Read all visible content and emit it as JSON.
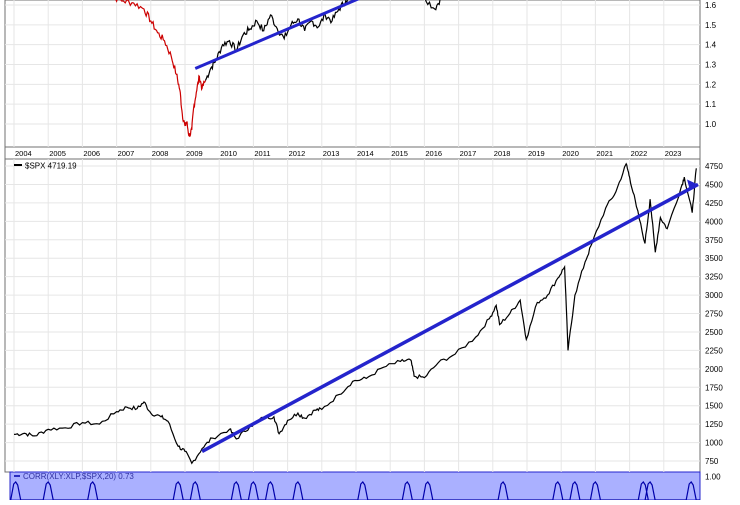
{
  "chart_data": [
    {
      "type": "line",
      "panel": "ratio",
      "title": "",
      "y_ticks": [
        "1.6",
        "1.5",
        "1.4",
        "1.3",
        "1.2",
        "1.1",
        "1.0"
      ],
      "ylim": [
        0.92,
        1.66
      ],
      "grid": true,
      "series": [
        {
          "color": "#cc0000",
          "points": [
            [
              2006.5,
              1.67
            ],
            [
              2006.9,
              1.64
            ],
            [
              2007.2,
              1.62
            ],
            [
              2007.5,
              1.61
            ],
            [
              2007.8,
              1.58
            ],
            [
              2008.0,
              1.52
            ],
            [
              2008.2,
              1.46
            ],
            [
              2008.4,
              1.42
            ],
            [
              2008.6,
              1.34
            ],
            [
              2008.75,
              1.25
            ],
            [
              2008.85,
              1.17
            ],
            [
              2008.92,
              1.05
            ],
            [
              2009.0,
              0.99
            ],
            [
              2009.05,
              1.01
            ],
            [
              2009.12,
              0.94
            ],
            [
              2009.2,
              0.97
            ],
            [
              2009.25,
              1.08
            ],
            [
              2009.33,
              1.16
            ],
            [
              2009.42,
              1.24
            ],
            [
              2009.5,
              1.18
            ],
            [
              2009.6,
              1.22
            ]
          ]
        },
        {
          "color": "#000000",
          "points": [
            [
              2009.6,
              1.22
            ],
            [
              2009.75,
              1.28
            ],
            [
              2009.9,
              1.32
            ],
            [
              2010.1,
              1.4
            ],
            [
              2010.3,
              1.42
            ],
            [
              2010.5,
              1.37
            ],
            [
              2010.7,
              1.45
            ],
            [
              2010.9,
              1.48
            ],
            [
              2011.1,
              1.52
            ],
            [
              2011.3,
              1.47
            ],
            [
              2011.5,
              1.55
            ],
            [
              2011.7,
              1.48
            ],
            [
              2011.9,
              1.43
            ],
            [
              2012.1,
              1.5
            ],
            [
              2012.3,
              1.53
            ],
            [
              2012.5,
              1.47
            ],
            [
              2012.7,
              1.52
            ],
            [
              2012.9,
              1.49
            ],
            [
              2013.1,
              1.55
            ],
            [
              2013.3,
              1.52
            ],
            [
              2013.5,
              1.58
            ],
            [
              2013.7,
              1.62
            ],
            [
              2013.9,
              1.66
            ],
            [
              2014.5,
              1.69
            ],
            [
              2015.0,
              1.66
            ],
            [
              2015.5,
              1.68
            ],
            [
              2016.0,
              1.64
            ],
            [
              2016.3,
              1.58
            ],
            [
              2016.5,
              1.64
            ],
            [
              2016.8,
              1.67
            ]
          ]
        }
      ],
      "trendline": {
        "color": "#2424cc",
        "from": [
          2009.3,
          1.28
        ],
        "to": [
          2014.6,
          1.67
        ]
      }
    },
    {
      "type": "line",
      "panel": "price",
      "legend_label": "$SPX 4719.19",
      "x_ticks": [
        "2004",
        "2005",
        "2006",
        "2007",
        "2008",
        "2009",
        "2010",
        "2011",
        "2012",
        "2013",
        "2014",
        "2015",
        "2016",
        "2017",
        "2018",
        "2019",
        "2020",
        "2021",
        "2022",
        "2023"
      ],
      "xlim": [
        2004.0,
        2024.0
      ],
      "y_ticks": [
        "4750",
        "4500",
        "4250",
        "4000",
        "3750",
        "3500",
        "3250",
        "3000",
        "2750",
        "2500",
        "2250",
        "2000",
        "1750",
        "1500",
        "1250",
        "1000",
        "750"
      ],
      "ylim": [
        650,
        4800
      ],
      "grid": true,
      "series": [
        {
          "name": "$SPX",
          "color": "#000000",
          "points": [
            [
              2004.0,
              1110
            ],
            [
              2004.3,
              1125
            ],
            [
              2004.6,
              1090
            ],
            [
              2005.0,
              1180
            ],
            [
              2005.5,
              1200
            ],
            [
              2006.0,
              1270
            ],
            [
              2006.5,
              1250
            ],
            [
              2007.0,
              1420
            ],
            [
              2007.3,
              1480
            ],
            [
              2007.6,
              1460
            ],
            [
              2007.8,
              1550
            ],
            [
              2008.0,
              1400
            ],
            [
              2008.3,
              1350
            ],
            [
              2008.5,
              1290
            ],
            [
              2008.8,
              950
            ],
            [
              2009.0,
              880
            ],
            [
              2009.2,
              720
            ],
            [
              2009.5,
              920
            ],
            [
              2009.8,
              1060
            ],
            [
              2010.3,
              1180
            ],
            [
              2010.5,
              1050
            ],
            [
              2010.9,
              1220
            ],
            [
              2011.3,
              1340
            ],
            [
              2011.6,
              1350
            ],
            [
              2011.75,
              1120
            ],
            [
              2012.0,
              1300
            ],
            [
              2012.3,
              1400
            ],
            [
              2012.5,
              1330
            ],
            [
              2012.8,
              1440
            ],
            [
              2013.0,
              1450
            ],
            [
              2013.5,
              1650
            ],
            [
              2013.9,
              1830
            ],
            [
              2014.3,
              1870
            ],
            [
              2014.8,
              2020
            ],
            [
              2015.3,
              2100
            ],
            [
              2015.6,
              2120
            ],
            [
              2015.7,
              1900
            ],
            [
              2016.0,
              1880
            ],
            [
              2016.4,
              2080
            ],
            [
              2016.9,
              2200
            ],
            [
              2017.5,
              2430
            ],
            [
              2017.9,
              2680
            ],
            [
              2018.1,
              2860
            ],
            [
              2018.2,
              2600
            ],
            [
              2018.5,
              2750
            ],
            [
              2018.8,
              2930
            ],
            [
              2018.98,
              2400
            ],
            [
              2019.3,
              2900
            ],
            [
              2019.6,
              3000
            ],
            [
              2019.9,
              3230
            ],
            [
              2020.1,
              3380
            ],
            [
              2020.2,
              2250
            ],
            [
              2020.4,
              3000
            ],
            [
              2020.7,
              3450
            ],
            [
              2020.9,
              3700
            ],
            [
              2021.3,
              4180
            ],
            [
              2021.6,
              4400
            ],
            [
              2021.9,
              4780
            ],
            [
              2022.0,
              4600
            ],
            [
              2022.2,
              4200
            ],
            [
              2022.45,
              3700
            ],
            [
              2022.6,
              4300
            ],
            [
              2022.75,
              3580
            ],
            [
              2022.9,
              4050
            ],
            [
              2023.1,
              3900
            ],
            [
              2023.5,
              4450
            ],
            [
              2023.6,
              4600
            ],
            [
              2023.83,
              4117
            ],
            [
              2023.95,
              4719.19
            ]
          ]
        }
      ],
      "trendline": {
        "color": "#2424cc",
        "from": [
          2009.5,
          880
        ],
        "to": [
          2024.0,
          4500
        ]
      }
    },
    {
      "type": "area",
      "panel": "indicator",
      "legend_label": "CORR(XLY:XLP,$SPX,20) 0.73",
      "y_ticks": [
        "1.00"
      ],
      "background": "#aab0ff",
      "line_color": "#0000aa",
      "note": "20-period correlation oscillator, bottom panel cropped"
    }
  ]
}
